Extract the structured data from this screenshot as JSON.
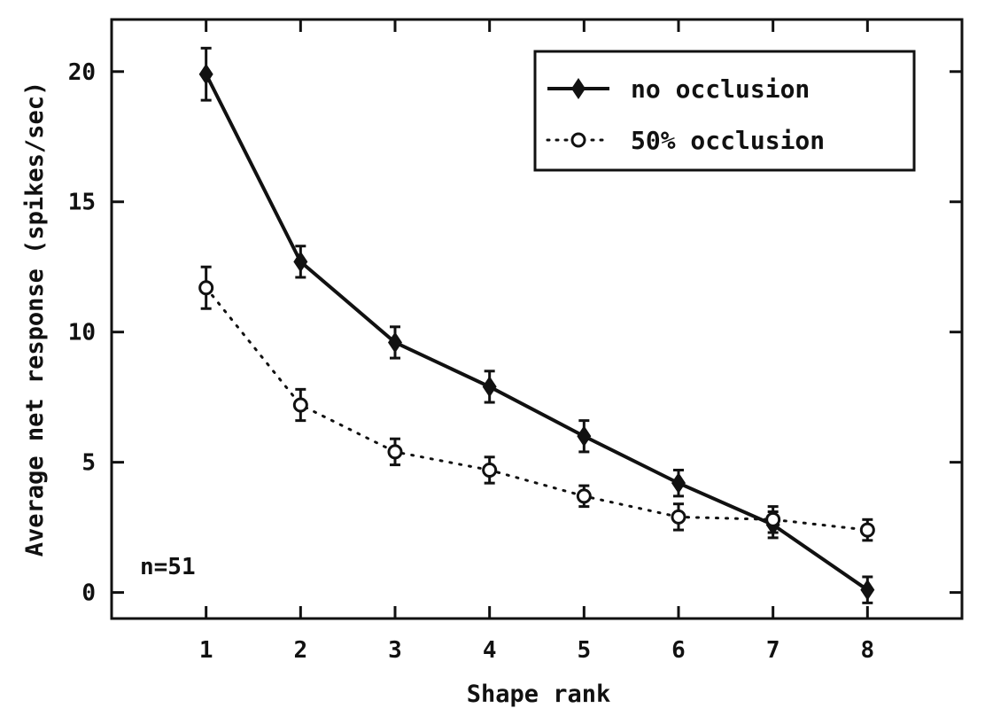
{
  "chart_data": {
    "type": "line",
    "title": "",
    "xlabel": "Shape rank",
    "ylabel": "Average net response (spikes/sec)",
    "x": [
      1,
      2,
      3,
      4,
      5,
      6,
      7,
      8
    ],
    "xlim": [
      0,
      9
    ],
    "ylim": [
      -1,
      22
    ],
    "xticks": [
      "1",
      "2",
      "3",
      "4",
      "5",
      "6",
      "7",
      "8"
    ],
    "yticks": [
      "0",
      "5",
      "10",
      "15",
      "20"
    ],
    "grid": false,
    "legend_position": "top-right",
    "annotation": "n=51",
    "series": [
      {
        "name": "no occlusion",
        "marker": "filled-diamond",
        "line_style": "solid",
        "values": [
          19.9,
          12.7,
          9.6,
          7.9,
          6.0,
          4.2,
          2.6,
          0.1
        ],
        "error": [
          1.0,
          0.6,
          0.6,
          0.6,
          0.6,
          0.5,
          0.5,
          0.5
        ]
      },
      {
        "name": "50% occlusion",
        "marker": "open-circle",
        "line_style": "dotted",
        "values": [
          11.7,
          7.2,
          5.4,
          4.7,
          3.7,
          2.9,
          2.8,
          2.4
        ],
        "error": [
          0.8,
          0.6,
          0.5,
          0.5,
          0.4,
          0.5,
          0.5,
          0.4
        ]
      }
    ]
  },
  "colors": {
    "ink": "#111111",
    "background": "#ffffff"
  }
}
